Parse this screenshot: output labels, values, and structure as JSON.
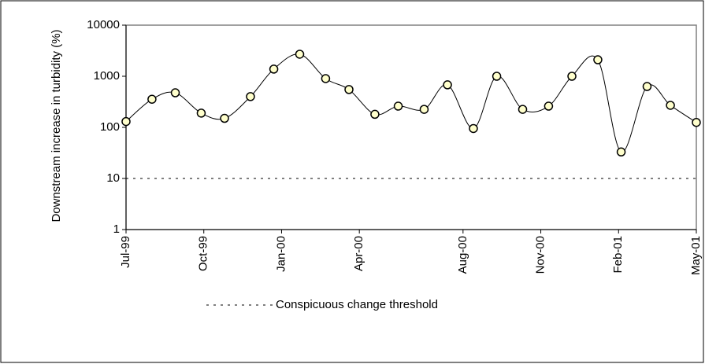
{
  "chart_data": {
    "type": "line",
    "y_label": "Downstream increase in turbidity (%)",
    "log_scale": true,
    "ylim": [
      1,
      10000
    ],
    "yticks": [
      1,
      10,
      100,
      1000,
      10000
    ],
    "xlim": [
      0,
      22
    ],
    "xticks": [
      {
        "value": 0,
        "label": "Jul-99"
      },
      {
        "value": 3,
        "label": "Oct-99"
      },
      {
        "value": 6,
        "label": "Jan-00"
      },
      {
        "value": 9,
        "label": "Apr-00"
      },
      {
        "value": 13,
        "label": "Aug-00"
      },
      {
        "value": 16,
        "label": "Nov-00"
      },
      {
        "value": 19,
        "label": "Feb-01"
      },
      {
        "value": 22,
        "label": "May-01"
      }
    ],
    "x": [
      0,
      1,
      1.9,
      2.9,
      3.8,
      4.8,
      5.7,
      6.7,
      7.7,
      8.6,
      9.6,
      10.5,
      11.5,
      12.4,
      13.4,
      14.3,
      15.3,
      16.3,
      17.2,
      18.2,
      19.1,
      20.1,
      21,
      22
    ],
    "values": [
      130,
      355,
      475,
      190,
      150,
      400,
      1380,
      2700,
      900,
      550,
      180,
      260,
      225,
      680,
      95,
      1000,
      225,
      260,
      1000,
      2100,
      33,
      630,
      270,
      125
    ],
    "line_color": "#000000",
    "marker_color": "#ffffcc",
    "threshold": {
      "value": 10,
      "label": "Conspicuous change threshold",
      "color": "#000000"
    }
  }
}
